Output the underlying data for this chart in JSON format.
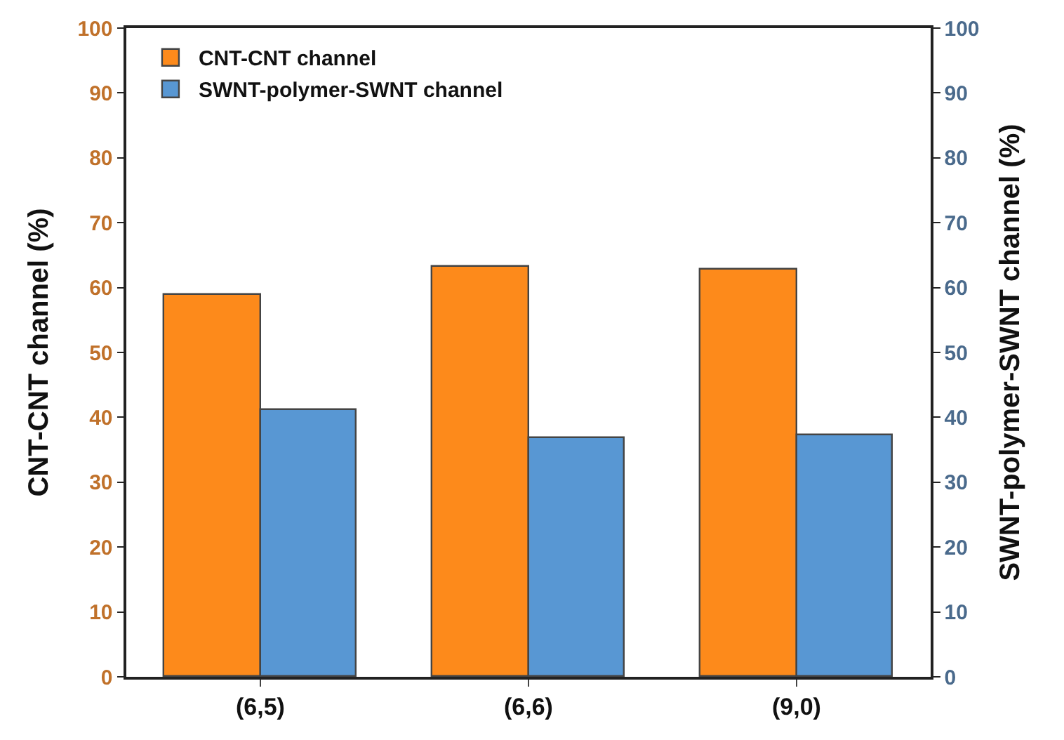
{
  "chart_data": {
    "type": "bar",
    "categories": [
      "(6,5)",
      "(6,6)",
      "(9,0)"
    ],
    "ylabel": "CNT-CNT channel (%)",
    "y2label": "SWNT-polymer-SWNT channel (%)",
    "series": [
      {
        "name": "CNT-CNT channel",
        "color": "#fd8a1b",
        "values": [
          58.8,
          63.1,
          62.7
        ]
      },
      {
        "name": "SWNT-polymer-SWNT channel",
        "color": "#5897d3",
        "values": [
          41.2,
          36.9,
          37.3
        ],
        "axis": "y2"
      }
    ],
    "ylim": [
      0,
      100
    ],
    "yticks": [
      0,
      10,
      20,
      30,
      40,
      50,
      60,
      70,
      80,
      90,
      100
    ],
    "y2lim": [
      0,
      100
    ],
    "y2ticks": [
      0,
      10,
      20,
      30,
      40,
      50,
      60,
      70,
      80,
      90,
      100
    ],
    "legend": "top left"
  }
}
